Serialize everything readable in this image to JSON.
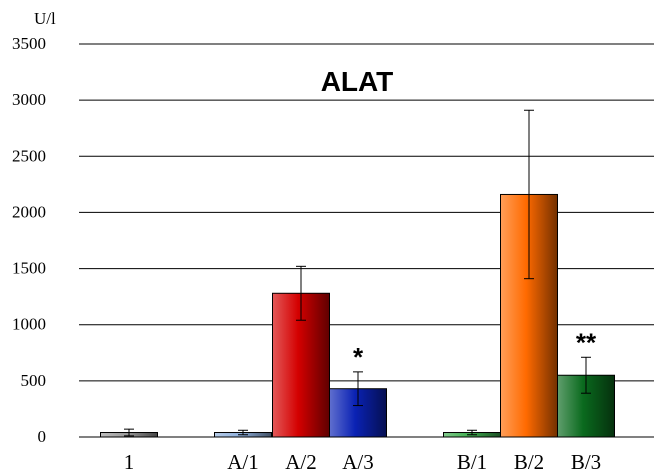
{
  "chart_data": {
    "type": "bar",
    "title": "ALAT",
    "ylabel": "U/l",
    "xlabel": "",
    "ylim": [
      0,
      3500
    ],
    "yticks": [
      0,
      500,
      1000,
      1500,
      2000,
      2500,
      3000,
      3500
    ],
    "grid": true,
    "categories": [
      "1",
      "A/1",
      "A/2",
      "A/3",
      "B/1",
      "B/2",
      "B/3"
    ],
    "values": [
      40,
      40,
      1280,
      430,
      40,
      2160,
      550
    ],
    "errors": [
      30,
      20,
      240,
      150,
      20,
      750,
      160
    ],
    "annotations": [
      "",
      "",
      "",
      "*",
      "",
      "",
      "**"
    ],
    "colors": {
      "1": "#9a9a9a",
      "A/1": "#8fb0dc",
      "A/2": "#d40000",
      "A/3": "#0a22b4",
      "B/1": "#3fae4f",
      "B/2": "#ff6a00",
      "B/3": "#0a6a1e"
    }
  }
}
